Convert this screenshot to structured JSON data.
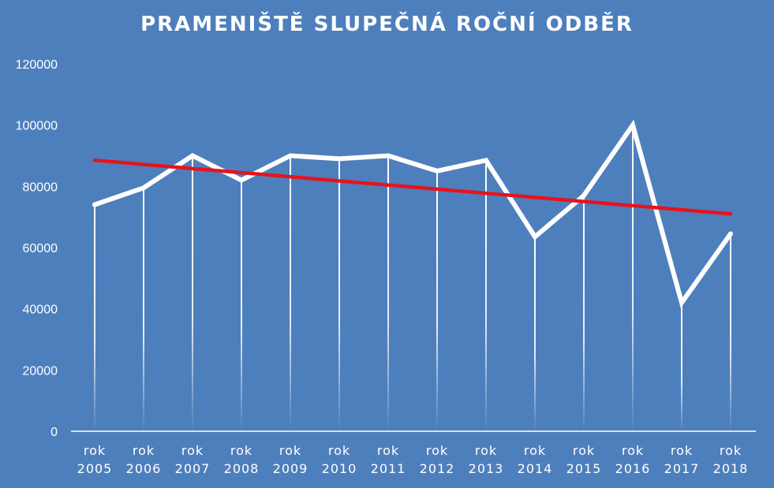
{
  "chart_data": {
    "type": "line",
    "title": "PRAMENIŠTĚ SLUPEČNÁ ROČNÍ ODBĚR",
    "xlabel": "",
    "ylabel": "",
    "categories": [
      [
        "rok",
        "2005"
      ],
      [
        "rok",
        "2006"
      ],
      [
        "rok",
        "2007"
      ],
      [
        "rok",
        "2008"
      ],
      [
        "rok",
        "2009"
      ],
      [
        "rok",
        "2010"
      ],
      [
        "rok",
        "2011"
      ],
      [
        "rok",
        "2012"
      ],
      [
        "rok",
        "2013"
      ],
      [
        "rok",
        "2014"
      ],
      [
        "rok",
        "2015"
      ],
      [
        "rok",
        "2016"
      ],
      [
        "rok",
        "2017"
      ],
      [
        "rok",
        "2018"
      ]
    ],
    "series": [
      {
        "values": [
          74000,
          79500,
          90000,
          82000,
          90000,
          89000,
          90000,
          85000,
          88500,
          63500,
          77000,
          100000,
          42000,
          64500
        ],
        "color": "#ffffff"
      }
    ],
    "trendline": {
      "type": "linear",
      "start": 88500,
      "end": 71000,
      "color": "#e8131b"
    },
    "yticks": [
      "0",
      "20000",
      "40000",
      "60000",
      "80000",
      "100000",
      "120000"
    ],
    "ylim": [
      0,
      120000
    ],
    "grid": false,
    "drop_lines": true,
    "legend": "none",
    "background_color": "#4e7fbd"
  }
}
